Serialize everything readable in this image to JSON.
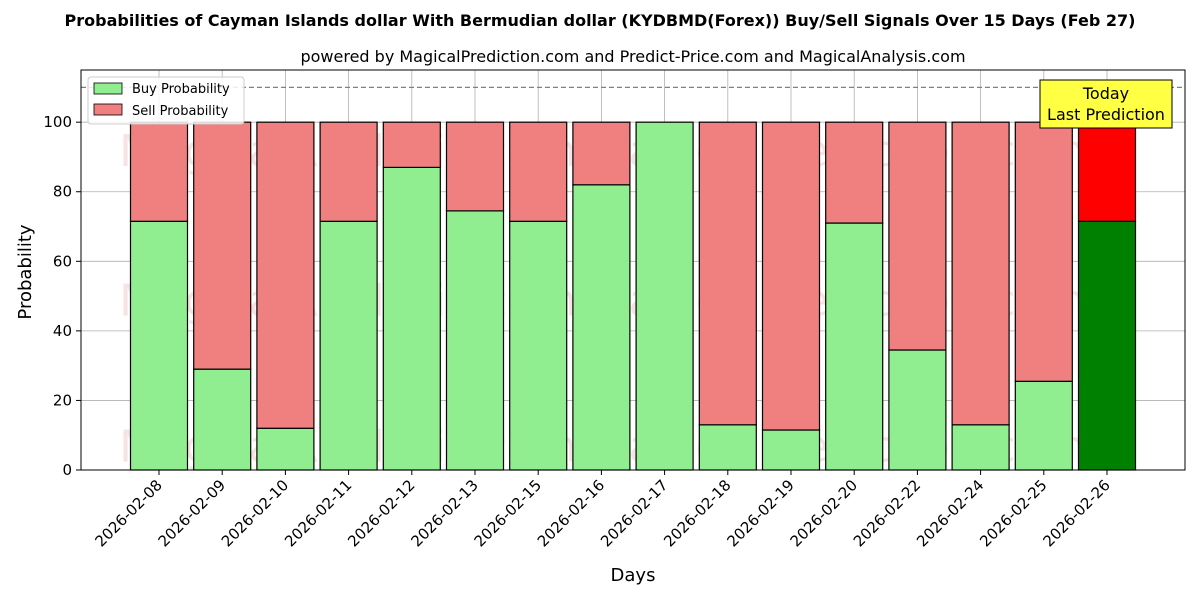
{
  "title": "Probabilities of Cayman Islands dollar With Bermudian dollar (KYDBMD(Forex)) Buy/Sell Signals Over 15 Days (Feb 27)",
  "subtitle": "powered by MagicalPrediction.com and Predict-Price.com and MagicalAnalysis.com",
  "watermarks": [
    "MagicalAnalysis.com",
    "MagicalPrediction.com"
  ],
  "annotation": {
    "line1": "Today",
    "line2": "Last Prediction"
  },
  "colors": {
    "buy": "#90ee90",
    "sell": "#f08080",
    "buy_today": "#008000",
    "sell_today": "#ff0000",
    "annotation_bg": "#ffff44",
    "grid": "#b0b0b0"
  },
  "chart_data": {
    "type": "bar",
    "stacked": true,
    "xlabel": "Days",
    "ylabel": "Probability",
    "ylim": [
      0,
      115
    ],
    "yticks": [
      0,
      20,
      40,
      60,
      80,
      100
    ],
    "reference_line": 110,
    "grid": true,
    "legend_position": "top-left",
    "categories": [
      "2026-02-08",
      "2026-02-09",
      "2026-02-10",
      "2026-02-11",
      "2026-02-12",
      "2026-02-13",
      "2026-02-15",
      "2026-02-16",
      "2026-02-17",
      "2026-02-18",
      "2026-02-19",
      "2026-02-20",
      "2026-02-22",
      "2026-02-24",
      "2026-02-25",
      "2026-02-26"
    ],
    "series": [
      {
        "name": "Buy Probability",
        "values": [
          71.5,
          29,
          12,
          71.5,
          87,
          74.5,
          71.5,
          82,
          100,
          13,
          11.5,
          71,
          34.5,
          13,
          25.5,
          71.5
        ]
      },
      {
        "name": "Sell Probability",
        "values": [
          28.5,
          71,
          88,
          28.5,
          13,
          25.5,
          28.5,
          18,
          0,
          87,
          88.5,
          29,
          65.5,
          87,
          74.5,
          28.5
        ]
      }
    ]
  }
}
